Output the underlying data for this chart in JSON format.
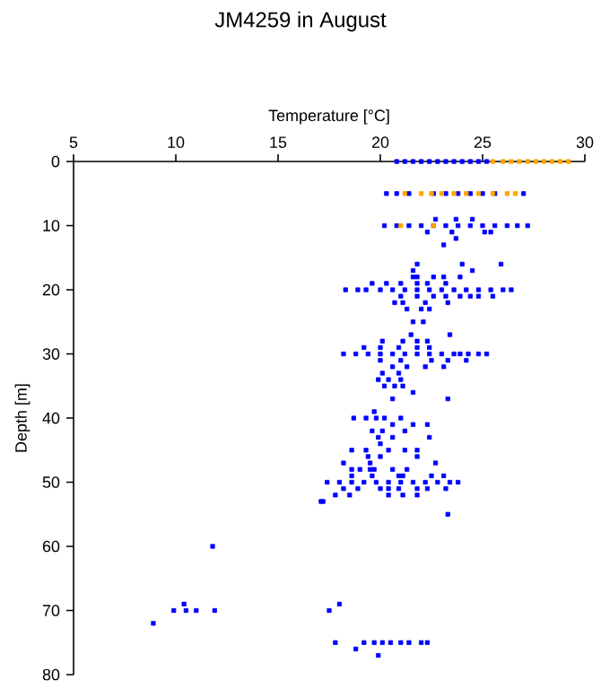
{
  "chart_data": {
    "type": "scatter",
    "title": "JM4259 in August",
    "xlabel": "Temperature [°C]",
    "ylabel": "Depth [m]",
    "xlim": [
      5,
      30
    ],
    "xticks": [
      5,
      10,
      15,
      20,
      25,
      30
    ],
    "ylim": [
      80,
      0
    ],
    "yticks": [
      0,
      10,
      20,
      30,
      40,
      50,
      60,
      70,
      80
    ],
    "marker": "square",
    "series": [
      {
        "color": "#0000ff",
        "x": [
          20.8,
          21.2,
          21.6,
          22,
          22.4,
          22.8,
          23.2,
          23.6,
          24,
          24.4,
          24.8,
          25.2,
          20.3,
          20.8,
          21.4,
          22,
          22.6,
          23.2,
          23.8,
          24.4,
          25,
          25.6,
          26.2,
          27,
          22.7,
          23.7,
          24.5,
          20.2,
          20.8,
          21.4,
          22,
          22.6,
          23.2,
          23.8,
          24.4,
          25,
          25.6,
          26.2,
          26.7,
          27.2,
          22.3,
          23.5,
          25.1,
          25.4,
          23.7,
          23.1,
          21.8,
          24,
          25.9,
          21.6,
          24.5,
          21.6,
          21.8,
          22.6,
          23.1,
          23.9,
          19.6,
          20.3,
          21,
          21.8,
          22.3,
          23.2,
          18.3,
          18.9,
          19.3,
          20,
          20.6,
          21.2,
          21.8,
          22.4,
          23,
          23.6,
          24.2,
          24.8,
          25.4,
          26,
          26.4,
          21,
          21.8,
          22.6,
          23.2,
          23.9,
          24.4,
          24.8,
          25.5,
          20.7,
          21.1,
          22.2,
          23.3,
          21.3,
          22,
          22.4,
          21.6,
          22.1,
          21.5,
          23.4,
          20.1,
          21.1,
          21.8,
          22.3,
          19.2,
          20,
          20.9,
          21.8,
          22.4,
          18.2,
          18.8,
          19.4,
          20,
          20.6,
          21.2,
          21.8,
          22.4,
          23,
          23.6,
          23.9,
          24.3,
          24.8,
          25.2,
          20,
          21,
          22.5,
          23.3,
          24.2,
          20.6,
          21.3,
          22.2,
          23.1,
          20.1,
          20.9,
          19.9,
          20.4,
          21,
          20.2,
          20.7,
          21.1,
          21.6,
          20.6,
          23.3,
          19.7,
          18.7,
          19.3,
          19.8,
          20.2,
          21,
          20.6,
          21.6,
          22.3,
          19.6,
          20.1,
          21.2,
          19.9,
          20.6,
          22.4,
          20,
          18.6,
          19.3,
          20.4,
          21.2,
          21.8,
          19.4,
          20,
          21.8,
          18.2,
          19.5,
          22.7,
          18.6,
          19,
          19.5,
          19.7,
          20.6,
          21.3,
          18.6,
          19.6,
          20.9,
          21.1,
          22.5,
          23.1,
          17.4,
          18,
          18.6,
          19.2,
          19.8,
          20.4,
          21,
          21.6,
          22.2,
          22.8,
          23.4,
          23.8,
          18.2,
          18.9,
          20,
          20.4,
          20.9,
          21.8,
          22.3,
          23.2,
          17.8,
          18.5,
          20.4,
          21.1,
          21.8,
          17.1,
          17.2,
          23.3,
          11.8,
          10.4,
          18,
          9.9,
          10.5,
          11,
          11.9,
          17.5,
          8.9,
          17.8,
          19.2,
          19.7,
          20.1,
          20.5,
          21,
          21.4,
          22,
          22.3,
          18.8,
          19.9
        ],
        "values": [
          0,
          0,
          0,
          0,
          0,
          0,
          0,
          0,
          0,
          0,
          0,
          0,
          5,
          5,
          5,
          null,
          5,
          5,
          5,
          5,
          5,
          5,
          null,
          5,
          9,
          9,
          9,
          10,
          10,
          10,
          10,
          10,
          10,
          10,
          10,
          10,
          10,
          10,
          10,
          10,
          11,
          11,
          11,
          11,
          12,
          13,
          16,
          16,
          16,
          17,
          17,
          18,
          18,
          18,
          18,
          18,
          19,
          19,
          19,
          19,
          19,
          19,
          20,
          20,
          20,
          20,
          20,
          20,
          20,
          20,
          20,
          20,
          20,
          20,
          20,
          20,
          20,
          21,
          21,
          21,
          21,
          21,
          21,
          21,
          21,
          22,
          22,
          22,
          22,
          23,
          23,
          23,
          25,
          25,
          27,
          27,
          28,
          28,
          28,
          28,
          29,
          29,
          29,
          29,
          29,
          30,
          30,
          30,
          30,
          30,
          30,
          30,
          30,
          30,
          30,
          30,
          30,
          30,
          30,
          31,
          31,
          31,
          31,
          31,
          32,
          32,
          32,
          32,
          33,
          33,
          34,
          34,
          34,
          35,
          35,
          35,
          36,
          37,
          37,
          39,
          40,
          40,
          40,
          40,
          40,
          41,
          41,
          41,
          42,
          42,
          42,
          43,
          43,
          43,
          44,
          45,
          45,
          45,
          45,
          45,
          46,
          46,
          46,
          47,
          47,
          47,
          48,
          48,
          48,
          48,
          48,
          48,
          49,
          49,
          49,
          49,
          49,
          49,
          50,
          50,
          50,
          50,
          50,
          50,
          50,
          50,
          50,
          50,
          50,
          50,
          51,
          51,
          51,
          51,
          51,
          51,
          51,
          51,
          52,
          52,
          52,
          52,
          52,
          53,
          53,
          55,
          60,
          69,
          69,
          70,
          70,
          70,
          70,
          70,
          72,
          75,
          75,
          75,
          75,
          75,
          75,
          75,
          75,
          75,
          76,
          77
        ]
      },
      {
        "color": "#ffa500",
        "x": [
          25.5,
          26,
          26.4,
          26.8,
          27.2,
          27.6,
          28,
          28.4,
          28.8,
          29.2,
          21.2,
          22,
          22.5,
          23,
          23.6,
          24.2,
          24.8,
          25.5,
          26.2,
          26.6,
          21,
          22.6
        ],
        "values": [
          0,
          0,
          0,
          0,
          0,
          0,
          0,
          0,
          0,
          0,
          5,
          5,
          5,
          5,
          5,
          5,
          5,
          5,
          5,
          5,
          10,
          10
        ]
      }
    ]
  }
}
